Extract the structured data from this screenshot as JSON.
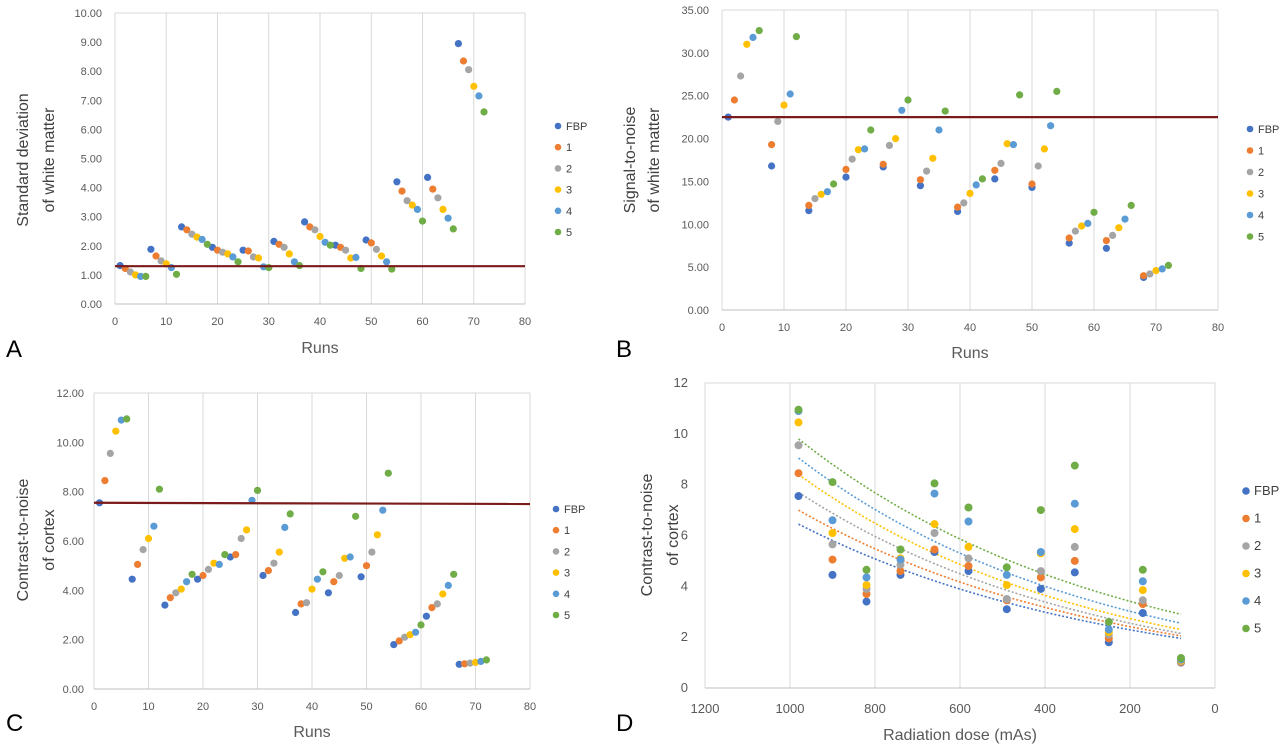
{
  "series_names": [
    "FBP",
    "1",
    "2",
    "3",
    "4",
    "5"
  ],
  "colors": [
    "#4472C4",
    "#ED7D31",
    "#A5A5A5",
    "#FFC000",
    "#5B9BD5",
    "#70AD47"
  ],
  "reference_line_color": "#7B1A1A",
  "chart_data": [
    {
      "panel_label": "A",
      "type": "scatter",
      "xlabel": "Runs",
      "ylabel": "Standard deviation of white matter",
      "ylabel_lines": [
        "Standard deviation",
        "of white matter"
      ],
      "xlim": [
        0,
        80
      ],
      "ylim": [
        0,
        10
      ],
      "xticks": [
        "0",
        "10",
        "20",
        "30",
        "40",
        "50",
        "60",
        "70",
        "80"
      ],
      "yticks": [
        "0.00",
        "1.00",
        "2.00",
        "3.00",
        "4.00",
        "5.00",
        "6.00",
        "7.00",
        "8.00",
        "9.00",
        "10.00"
      ],
      "grid": "vertical",
      "legend": "right",
      "reference_line": [
        1.3,
        1.3
      ],
      "series": [
        {
          "name": "FBP",
          "x": [
            1,
            7,
            13,
            19,
            25,
            31,
            37,
            43,
            49,
            55,
            61,
            67
          ],
          "y": [
            1.32,
            1.88,
            2.65,
            1.95,
            1.85,
            2.15,
            2.82,
            2.02,
            2.2,
            4.2,
            4.35,
            8.95
          ]
        },
        {
          "name": "1",
          "x": [
            2,
            8,
            14,
            20,
            26,
            32,
            38,
            44,
            50,
            56,
            62,
            68
          ],
          "y": [
            1.22,
            1.65,
            2.55,
            1.85,
            1.82,
            2.05,
            2.65,
            1.95,
            2.1,
            3.88,
            3.95,
            8.35
          ]
        },
        {
          "name": "2",
          "x": [
            3,
            9,
            15,
            21,
            27,
            33,
            39,
            45,
            51,
            57,
            63,
            69
          ],
          "y": [
            1.1,
            1.48,
            2.4,
            1.78,
            1.62,
            1.95,
            2.55,
            1.85,
            1.88,
            3.55,
            3.65,
            8.05
          ]
        },
        {
          "name": "3",
          "x": [
            4,
            10,
            16,
            22,
            28,
            34,
            40,
            46,
            52,
            58,
            64,
            70
          ],
          "y": [
            1.0,
            1.38,
            2.3,
            1.72,
            1.58,
            1.72,
            2.32,
            1.58,
            1.65,
            3.4,
            3.25,
            7.48
          ]
        },
        {
          "name": "4",
          "x": [
            5,
            11,
            17,
            23,
            29,
            35,
            41,
            47,
            53,
            59,
            65,
            71
          ],
          "y": [
            0.95,
            1.25,
            2.22,
            1.62,
            1.28,
            1.45,
            2.12,
            1.6,
            1.45,
            3.25,
            2.95,
            7.15
          ]
        },
        {
          "name": "5",
          "x": [
            6,
            12,
            18,
            24,
            30,
            36,
            42,
            48,
            54,
            60,
            66,
            72
          ],
          "y": [
            0.95,
            1.02,
            2.05,
            1.45,
            1.25,
            1.32,
            2.02,
            1.22,
            1.2,
            2.85,
            2.58,
            6.6
          ]
        }
      ]
    },
    {
      "panel_label": "B",
      "type": "scatter",
      "xlabel": "Runs",
      "ylabel": "Signal-to-noise of white matter",
      "ylabel_lines": [
        "Signal-to-noise",
        "of white matter"
      ],
      "xlim": [
        0,
        80
      ],
      "ylim": [
        0,
        35
      ],
      "xticks": [
        "0",
        "10",
        "20",
        "30",
        "40",
        "50",
        "60",
        "70",
        "80"
      ],
      "yticks": [
        "0.00",
        "5.00",
        "10.00",
        "15.00",
        "20.00",
        "25.00",
        "30.00",
        "35.00"
      ],
      "grid": "vertical",
      "legend": "right",
      "reference_line": [
        22.5,
        22.5
      ],
      "series": [
        {
          "name": "FBP",
          "x": [
            1,
            8,
            14,
            20,
            26,
            32,
            38,
            44,
            50,
            56,
            62,
            68
          ],
          "y": [
            22.5,
            16.8,
            11.6,
            15.5,
            16.7,
            14.5,
            11.5,
            15.3,
            14.3,
            7.8,
            7.2,
            3.8
          ]
        },
        {
          "name": "1",
          "x": [
            2,
            8,
            14,
            20,
            26,
            32,
            38,
            44,
            50,
            56,
            62,
            68
          ],
          "y": [
            24.5,
            19.3,
            12.2,
            16.4,
            17.0,
            15.2,
            12.0,
            16.3,
            14.7,
            8.4,
            8.1,
            4.0
          ]
        },
        {
          "name": "2",
          "x": [
            3,
            9,
            15,
            21,
            27,
            33,
            39,
            45,
            51,
            57,
            63,
            69
          ],
          "y": [
            27.3,
            22.0,
            13.0,
            17.6,
            19.2,
            16.2,
            12.5,
            17.1,
            16.8,
            9.2,
            8.7,
            4.2
          ]
        },
        {
          "name": "3",
          "x": [
            4,
            10,
            16,
            22,
            28,
            34,
            40,
            46,
            52,
            58,
            64,
            70
          ],
          "y": [
            31.0,
            23.9,
            13.5,
            18.7,
            20.0,
            17.7,
            13.6,
            19.4,
            18.8,
            9.8,
            9.6,
            4.6
          ]
        },
        {
          "name": "4",
          "x": [
            5,
            11,
            17,
            23,
            29,
            35,
            41,
            47,
            53,
            59,
            65,
            71
          ],
          "y": [
            31.8,
            25.2,
            13.8,
            18.8,
            23.3,
            21.0,
            14.6,
            19.3,
            21.5,
            10.1,
            10.6,
            4.8
          ]
        },
        {
          "name": "5",
          "x": [
            6,
            12,
            18,
            24,
            30,
            36,
            42,
            48,
            54,
            60,
            66,
            72
          ],
          "y": [
            32.6,
            31.9,
            14.7,
            21.0,
            24.5,
            23.2,
            15.3,
            25.1,
            25.5,
            11.4,
            12.2,
            5.2
          ]
        }
      ]
    },
    {
      "panel_label": "C",
      "type": "scatter",
      "xlabel": "Runs",
      "ylabel": "Contrast-to-noise of cortex",
      "ylabel_lines": [
        "Contrast-to-noise",
        "of cortex"
      ],
      "xlim": [
        0,
        80
      ],
      "ylim": [
        0,
        12
      ],
      "xticks": [
        "0",
        "10",
        "20",
        "30",
        "40",
        "50",
        "60",
        "70",
        "80"
      ],
      "yticks": [
        "0.00",
        "2.00",
        "4.00",
        "6.00",
        "8.00",
        "10.00",
        "12.00"
      ],
      "grid": "vertical",
      "legend": "right",
      "reference_line": [
        7.55,
        7.5
      ],
      "series": [
        {
          "name": "FBP",
          "x": [
            1,
            7,
            13,
            19,
            25,
            31,
            37,
            43,
            49,
            55,
            61,
            67
          ],
          "y": [
            7.55,
            4.45,
            3.4,
            4.45,
            5.35,
            4.6,
            3.1,
            3.9,
            4.55,
            1.8,
            2.95,
            1.0
          ]
        },
        {
          "name": "1",
          "x": [
            2,
            8,
            14,
            20,
            26,
            32,
            38,
            44,
            50,
            56,
            62,
            68
          ],
          "y": [
            8.45,
            5.05,
            3.7,
            4.6,
            5.45,
            4.8,
            3.45,
            4.35,
            5.0,
            1.95,
            3.3,
            1.02
          ]
        },
        {
          "name": "2",
          "x": [
            3,
            9,
            15,
            21,
            27,
            33,
            39,
            45,
            51,
            57,
            63,
            69
          ],
          "y": [
            9.55,
            5.65,
            3.9,
            4.85,
            6.1,
            5.1,
            3.5,
            4.6,
            5.55,
            2.1,
            3.45,
            1.05
          ]
        },
        {
          "name": "3",
          "x": [
            4,
            10,
            16,
            22,
            28,
            34,
            40,
            46,
            52,
            58,
            64,
            70
          ],
          "y": [
            10.45,
            6.1,
            4.05,
            5.1,
            6.45,
            5.55,
            4.05,
            5.3,
            6.25,
            2.2,
            3.85,
            1.08
          ]
        },
        {
          "name": "4",
          "x": [
            5,
            11,
            17,
            23,
            29,
            35,
            41,
            47,
            53,
            59,
            65,
            71
          ],
          "y": [
            10.9,
            6.6,
            4.35,
            5.05,
            7.65,
            6.55,
            4.45,
            5.35,
            7.25,
            2.3,
            4.2,
            1.12
          ]
        },
        {
          "name": "5",
          "x": [
            6,
            12,
            18,
            24,
            30,
            36,
            42,
            48,
            54,
            60,
            66,
            72
          ],
          "y": [
            10.95,
            8.1,
            4.65,
            5.45,
            8.05,
            7.1,
            4.75,
            7.0,
            8.75,
            2.6,
            4.65,
            1.18
          ]
        }
      ]
    },
    {
      "panel_label": "D",
      "type": "scatter",
      "xlabel": "Radiation dose (mAs)",
      "ylabel": "Contrast-to-noise of cortex",
      "ylabel_lines": [
        "Contrast-to-noise",
        "of cortex"
      ],
      "xlim": [
        1200,
        0
      ],
      "ylim": [
        0,
        12
      ],
      "xticks": [
        "1200",
        "1000",
        "800",
        "600",
        "400",
        "200",
        "0"
      ],
      "yticks": [
        "0",
        "2",
        "4",
        "6",
        "8",
        "10",
        "12"
      ],
      "grid": "vertical",
      "legend": "right",
      "trendlines": "dotted",
      "doses": [
        980,
        900,
        820,
        740,
        660,
        580,
        490,
        410,
        330,
        250,
        170,
        80
      ],
      "series": [
        {
          "name": "FBP",
          "y": [
            7.55,
            4.45,
            3.4,
            4.45,
            5.35,
            4.6,
            3.1,
            3.9,
            4.55,
            1.8,
            2.95,
            1.0
          ],
          "trend": [
            6.45,
            1.95
          ]
        },
        {
          "name": "1",
          "y": [
            8.45,
            5.05,
            3.7,
            4.6,
            5.45,
            4.8,
            3.45,
            4.35,
            5.0,
            1.95,
            3.3,
            1.02
          ],
          "trend": [
            7.0,
            2.05
          ]
        },
        {
          "name": "2",
          "y": [
            9.55,
            5.65,
            3.9,
            4.85,
            6.1,
            5.1,
            3.5,
            4.6,
            5.55,
            2.1,
            3.45,
            1.05
          ],
          "trend": [
            7.7,
            2.15
          ]
        },
        {
          "name": "3",
          "y": [
            10.45,
            6.1,
            4.05,
            5.1,
            6.45,
            5.55,
            4.05,
            5.3,
            6.25,
            2.2,
            3.85,
            1.08
          ],
          "trend": [
            8.4,
            2.3
          ]
        },
        {
          "name": "4",
          "y": [
            10.9,
            6.6,
            4.35,
            5.05,
            7.65,
            6.55,
            4.45,
            5.35,
            7.25,
            2.3,
            4.2,
            1.12
          ],
          "trend": [
            9.05,
            2.55
          ]
        },
        {
          "name": "5",
          "y": [
            10.95,
            8.1,
            4.65,
            5.45,
            8.05,
            7.1,
            4.75,
            7.0,
            8.75,
            2.6,
            4.65,
            1.18
          ],
          "trend": [
            9.8,
            2.9
          ]
        }
      ]
    }
  ]
}
